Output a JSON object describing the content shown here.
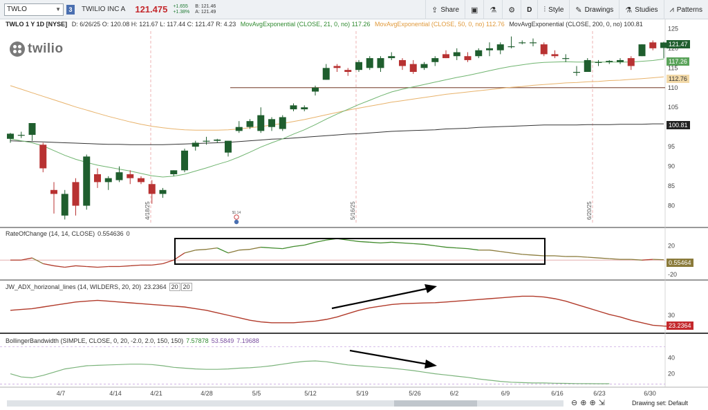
{
  "toolbar": {
    "symbol": "TWLO",
    "link_badge": "3",
    "company_name": "TWILIO INC A",
    "last_price": "121.475",
    "net_change": "+1.655",
    "pct_change": "+1.38%",
    "bid": "B: 121.46",
    "ask": "A: 121.49",
    "share_label": "Share",
    "aggregation_label": "D",
    "style_label": "Style",
    "drawings_label": "Drawings",
    "studies_label": "Studies",
    "patterns_label": "Patterns"
  },
  "study_line": {
    "symbol_period": "TWLO 1 Y 1D [NYSE]",
    "ohlc": "D: 6/26/25  O: 120.08  H: 121.67  L: 117.44  C: 121.47  R: 4.23",
    "ma21": "MovAvgExponential (CLOSE, 21, 0, no)  117.26",
    "ma50": "MovAvgExponential (CLOSE, 50, 0, no)  112.76",
    "ma200": "MovAvgExponential (CLOSE, 200, 0, no)  100.81"
  },
  "logo_text": "twilio",
  "price_scale": [
    "125",
    "120",
    "115",
    "110",
    "105",
    "100",
    "95",
    "90",
    "85",
    "80"
  ],
  "price_tags": {
    "last": "121.47",
    "ma21": "117.26",
    "ma50": "112.76",
    "ma200": "100.81"
  },
  "vertical_date_labels": [
    "4/18/25",
    "5/16/25",
    "6/20/25"
  ],
  "earnings_marker": "$1.14",
  "roc_panel": {
    "header": "RateOfChange (14, 14, CLOSE)",
    "value": "0.554636",
    "extra": "0",
    "scale": [
      "20",
      "-20"
    ],
    "tag": "0.55464"
  },
  "adx_panel": {
    "header": "JW_ADX_horizonal_lines (14, WILDERS, 20, 20)",
    "value": "23.2364",
    "box1": "20",
    "box2": "20",
    "scale": [
      "30"
    ],
    "tag": "23.2364"
  },
  "bbw_panel": {
    "header": "BollingerBandwidth (SIMPLE, CLOSE, 0, 20, -2.0, 2.0, 150, 150)",
    "value1": "7.57878",
    "value2": "53.5849",
    "value3": "7.19688",
    "scale": [
      "40",
      "20"
    ]
  },
  "x_axis": [
    "4/7",
    "4/14",
    "4/21",
    "4/28",
    "5/5",
    "5/12",
    "5/19",
    "5/26",
    "6/2",
    "6/9",
    "6/16",
    "6/23",
    "6/30"
  ],
  "status": {
    "drawing_set": "Drawing set: Default"
  },
  "colors": {
    "up_candle": "#1f5e2e",
    "down_candle": "#b83232",
    "ma21": "#6fb46f",
    "ma50": "#e8b26a",
    "ma200": "#333333",
    "roc_line": "#4f8b2f",
    "adx_line": "#b13a2a",
    "bbw_line": "#7ab37a",
    "last_tag": "#1f5e2e",
    "ma50_tag": "#f2d9a8",
    "roc_tag": "#8a7a3a",
    "adx_tag": "#c4282c"
  },
  "chart_data": {
    "type": "candlestick",
    "price_ylim": [
      75,
      127
    ],
    "candles": [
      {
        "o": 97.0,
        "h": 98.5,
        "l": 96.0,
        "c": 98.3
      },
      {
        "o": 98.0,
        "h": 98.8,
        "l": 97.2,
        "c": 98.0
      },
      {
        "o": 98.0,
        "h": 101.0,
        "l": 96.5,
        "c": 101.0
      },
      {
        "o": 95.5,
        "h": 96.0,
        "l": 88.5,
        "c": 89.5
      },
      {
        "o": 84.0,
        "h": 86.0,
        "l": 78.0,
        "c": 83.0
      },
      {
        "o": 77.5,
        "h": 84.0,
        "l": 76.5,
        "c": 83.0
      },
      {
        "o": 86.0,
        "h": 87.0,
        "l": 77.5,
        "c": 80.0
      },
      {
        "o": 80.0,
        "h": 93.0,
        "l": 79.0,
        "c": 92.5
      },
      {
        "o": 88.0,
        "h": 89.5,
        "l": 84.5,
        "c": 86.0
      },
      {
        "o": 86.0,
        "h": 87.5,
        "l": 84.0,
        "c": 87.0
      },
      {
        "o": 86.5,
        "h": 90.0,
        "l": 86.0,
        "c": 88.5
      },
      {
        "o": 88.0,
        "h": 89.0,
        "l": 85.5,
        "c": 87.0
      },
      {
        "o": 87.0,
        "h": 87.5,
        "l": 85.5,
        "c": 86.0
      },
      {
        "o": 85.5,
        "h": 86.5,
        "l": 80.5,
        "c": 83.0
      },
      {
        "o": 83.0,
        "h": 84.5,
        "l": 82.0,
        "c": 84.0
      },
      {
        "o": 88.0,
        "h": 89.0,
        "l": 87.5,
        "c": 89.0
      },
      {
        "o": 89.0,
        "h": 94.5,
        "l": 88.5,
        "c": 94.0
      },
      {
        "o": 95.0,
        "h": 96.5,
        "l": 94.0,
        "c": 96.0
      },
      {
        "o": 96.5,
        "h": 97.5,
        "l": 95.5,
        "c": 96.5
      },
      {
        "o": 96.5,
        "h": 97.0,
        "l": 96.0,
        "c": 96.8
      },
      {
        "o": 93.5,
        "h": 96.5,
        "l": 92.5,
        "c": 96.5
      },
      {
        "o": 99.0,
        "h": 101.5,
        "l": 98.5,
        "c": 100.0
      },
      {
        "o": 100.0,
        "h": 102.0,
        "l": 99.5,
        "c": 101.5
      },
      {
        "o": 99.0,
        "h": 105.0,
        "l": 98.5,
        "c": 103.0
      },
      {
        "o": 100.0,
        "h": 102.5,
        "l": 99.0,
        "c": 102.0
      },
      {
        "o": 99.5,
        "h": 103.0,
        "l": 99.0,
        "c": 102.5
      },
      {
        "o": 104.5,
        "h": 106.0,
        "l": 104.0,
        "c": 105.5
      },
      {
        "o": 104.5,
        "h": 105.5,
        "l": 104.0,
        "c": 105.0
      },
      {
        "o": 109.0,
        "h": 110.5,
        "l": 108.0,
        "c": 110.0
      },
      {
        "o": 112.0,
        "h": 116.0,
        "l": 112.0,
        "c": 115.0
      },
      {
        "o": 115.5,
        "h": 116.0,
        "l": 114.0,
        "c": 115.0
      },
      {
        "o": 114.5,
        "h": 115.0,
        "l": 113.0,
        "c": 114.0
      },
      {
        "o": 114.5,
        "h": 117.0,
        "l": 114.0,
        "c": 116.5
      },
      {
        "o": 115.0,
        "h": 118.0,
        "l": 114.5,
        "c": 117.5
      },
      {
        "o": 115.0,
        "h": 118.0,
        "l": 114.0,
        "c": 117.5
      },
      {
        "o": 117.5,
        "h": 119.0,
        "l": 117.0,
        "c": 118.0
      },
      {
        "o": 117.0,
        "h": 117.5,
        "l": 114.5,
        "c": 115.5
      },
      {
        "o": 116.0,
        "h": 117.0,
        "l": 113.5,
        "c": 114.0
      },
      {
        "o": 115.0,
        "h": 116.5,
        "l": 114.5,
        "c": 116.0
      },
      {
        "o": 116.5,
        "h": 118.0,
        "l": 115.5,
        "c": 117.5
      },
      {
        "o": 118.5,
        "h": 119.5,
        "l": 117.5,
        "c": 117.5
      },
      {
        "o": 118.0,
        "h": 120.0,
        "l": 117.0,
        "c": 119.0
      },
      {
        "o": 118.0,
        "h": 119.0,
        "l": 116.5,
        "c": 117.0
      },
      {
        "o": 118.0,
        "h": 120.0,
        "l": 117.5,
        "c": 119.5
      },
      {
        "o": 119.5,
        "h": 121.5,
        "l": 118.0,
        "c": 120.0
      },
      {
        "o": 119.5,
        "h": 121.5,
        "l": 118.5,
        "c": 121.0
      },
      {
        "o": 120.5,
        "h": 123.0,
        "l": 120.0,
        "c": 120.5
      },
      {
        "o": 121.5,
        "h": 122.0,
        "l": 121.0,
        "c": 121.5
      },
      {
        "o": 121.5,
        "h": 122.5,
        "l": 120.5,
        "c": 121.5
      },
      {
        "o": 121.0,
        "h": 121.5,
        "l": 118.0,
        "c": 118.5
      },
      {
        "o": 118.5,
        "h": 119.5,
        "l": 117.5,
        "c": 118.0
      },
      {
        "o": 117.5,
        "h": 118.5,
        "l": 116.5,
        "c": 117.5
      },
      {
        "o": 114.0,
        "h": 115.5,
        "l": 113.0,
        "c": 114.0
      },
      {
        "o": 114.0,
        "h": 117.5,
        "l": 114.0,
        "c": 117.0
      },
      {
        "o": 116.5,
        "h": 117.0,
        "l": 115.5,
        "c": 116.5
      },
      {
        "o": 116.5,
        "h": 117.0,
        "l": 116.0,
        "c": 116.8
      },
      {
        "o": 116.5,
        "h": 117.5,
        "l": 116.0,
        "c": 117.0
      },
      {
        "o": 117.5,
        "h": 118.0,
        "l": 114.5,
        "c": 115.5
      },
      {
        "o": 118.0,
        "h": 121.0,
        "l": 118.0,
        "c": 121.0
      },
      {
        "o": 121.5,
        "h": 122.0,
        "l": 119.5,
        "c": 120.0
      },
      {
        "o": 120.08,
        "h": 121.67,
        "l": 117.44,
        "c": 121.47
      }
    ],
    "ema21": [
      97.0,
      96.5,
      96.0,
      95.2,
      94.0,
      92.8,
      91.8,
      91.0,
      90.3,
      89.8,
      89.3,
      88.8,
      88.2,
      87.6,
      87.3,
      87.5,
      88.0,
      88.8,
      89.6,
      90.5,
      91.3,
      92.4,
      93.6,
      94.9,
      96.0,
      97.0,
      98.2,
      99.3,
      100.6,
      102.0,
      103.3,
      104.5,
      105.7,
      106.8,
      107.9,
      108.9,
      109.6,
      110.2,
      110.8,
      111.4,
      112.0,
      112.6,
      113.1,
      113.7,
      114.3,
      114.9,
      115.4,
      115.8,
      116.2,
      116.4,
      116.5,
      116.6,
      116.5,
      116.5,
      116.5,
      116.5,
      116.5,
      116.5,
      116.7,
      116.9,
      117.26
    ],
    "ema50": [
      110.5,
      109.6,
      108.7,
      107.8,
      106.9,
      106.0,
      105.1,
      104.3,
      103.5,
      102.7,
      102.0,
      101.3,
      100.7,
      100.2,
      99.8,
      99.5,
      99.3,
      99.2,
      99.2,
      99.2,
      99.3,
      99.5,
      99.8,
      100.1,
      100.5,
      100.9,
      101.4,
      101.9,
      102.5,
      103.1,
      103.7,
      104.3,
      104.8,
      105.3,
      105.8,
      106.3,
      106.7,
      107.1,
      107.5,
      107.9,
      108.3,
      108.6,
      108.9,
      109.2,
      109.5,
      109.8,
      110.1,
      110.3,
      110.6,
      110.8,
      111.0,
      111.2,
      111.3,
      111.5,
      111.6,
      111.8,
      111.9,
      112.1,
      112.3,
      112.5,
      112.76
    ],
    "ema200": [
      96.5,
      96.4,
      96.3,
      96.2,
      96.1,
      96.0,
      95.9,
      95.8,
      95.7,
      95.6,
      95.6,
      95.5,
      95.5,
      95.5,
      95.5,
      95.6,
      95.7,
      95.8,
      95.9,
      96.0,
      96.1,
      96.3,
      96.5,
      96.7,
      96.9,
      97.0,
      97.2,
      97.4,
      97.6,
      97.8,
      98.0,
      98.2,
      98.3,
      98.5,
      98.7,
      98.9,
      99.0,
      99.1,
      99.2,
      99.3,
      99.5,
      99.6,
      99.7,
      99.9,
      100.0,
      100.1,
      100.2,
      100.3,
      100.4,
      100.5,
      100.5,
      100.5,
      100.5,
      100.6,
      100.6,
      100.6,
      100.7,
      100.7,
      100.7,
      100.8,
      100.81
    ],
    "horizontal_line": 110.0,
    "roc": [
      0,
      0,
      3,
      -5,
      -8,
      -10,
      -8,
      -9,
      -10,
      -9,
      -9,
      -8,
      -7,
      -7,
      -5,
      0,
      10,
      14,
      15,
      17,
      10,
      14,
      15,
      18,
      17,
      16,
      19,
      21,
      25,
      28,
      30,
      28,
      26,
      25,
      24,
      25,
      24,
      23,
      22,
      20,
      18,
      17,
      16,
      14,
      14,
      12,
      10,
      8,
      7,
      6,
      6,
      5,
      5,
      4,
      3,
      2,
      1,
      1,
      0,
      1,
      0.55
    ],
    "roc_ylim": [
      -25,
      35
    ],
    "adx": [
      33,
      33.5,
      34,
      35,
      36,
      37,
      38,
      38.5,
      39,
      38.5,
      38,
      37.5,
      37,
      36.5,
      36,
      35.5,
      35,
      34,
      33,
      31.5,
      30,
      28.5,
      27,
      26,
      25.5,
      25.5,
      25.5,
      26,
      26.5,
      27.5,
      29,
      31,
      33,
      34.5,
      35.5,
      36.5,
      37,
      37.2,
      37.4,
      37.6,
      38,
      38.5,
      39,
      39.5,
      40,
      40.5,
      41,
      41.5,
      41.5,
      41,
      40,
      38.5,
      36.5,
      34.5,
      32.5,
      30.5,
      29,
      27,
      25.5,
      24,
      23.5,
      23.2364
    ],
    "adx_ylim": [
      20,
      45
    ],
    "bbw": [
      20,
      16,
      15,
      18,
      22,
      26,
      28,
      30,
      30.5,
      31,
      31.5,
      32,
      32,
      31.5,
      30,
      28,
      27,
      26,
      25.5,
      25.5,
      26,
      27,
      27.5,
      28.5,
      30,
      32,
      34,
      35.5,
      36,
      35,
      33,
      31,
      30,
      29,
      28,
      27,
      25.5,
      24,
      22,
      20,
      18.5,
      17,
      15.5,
      13.5,
      12,
      10.5,
      9.5,
      9,
      8.5,
      8.5,
      8.2,
      8,
      7.8,
      7.7,
      7.6,
      7.57878
    ],
    "bbw_ylim": [
      5,
      55
    ]
  }
}
